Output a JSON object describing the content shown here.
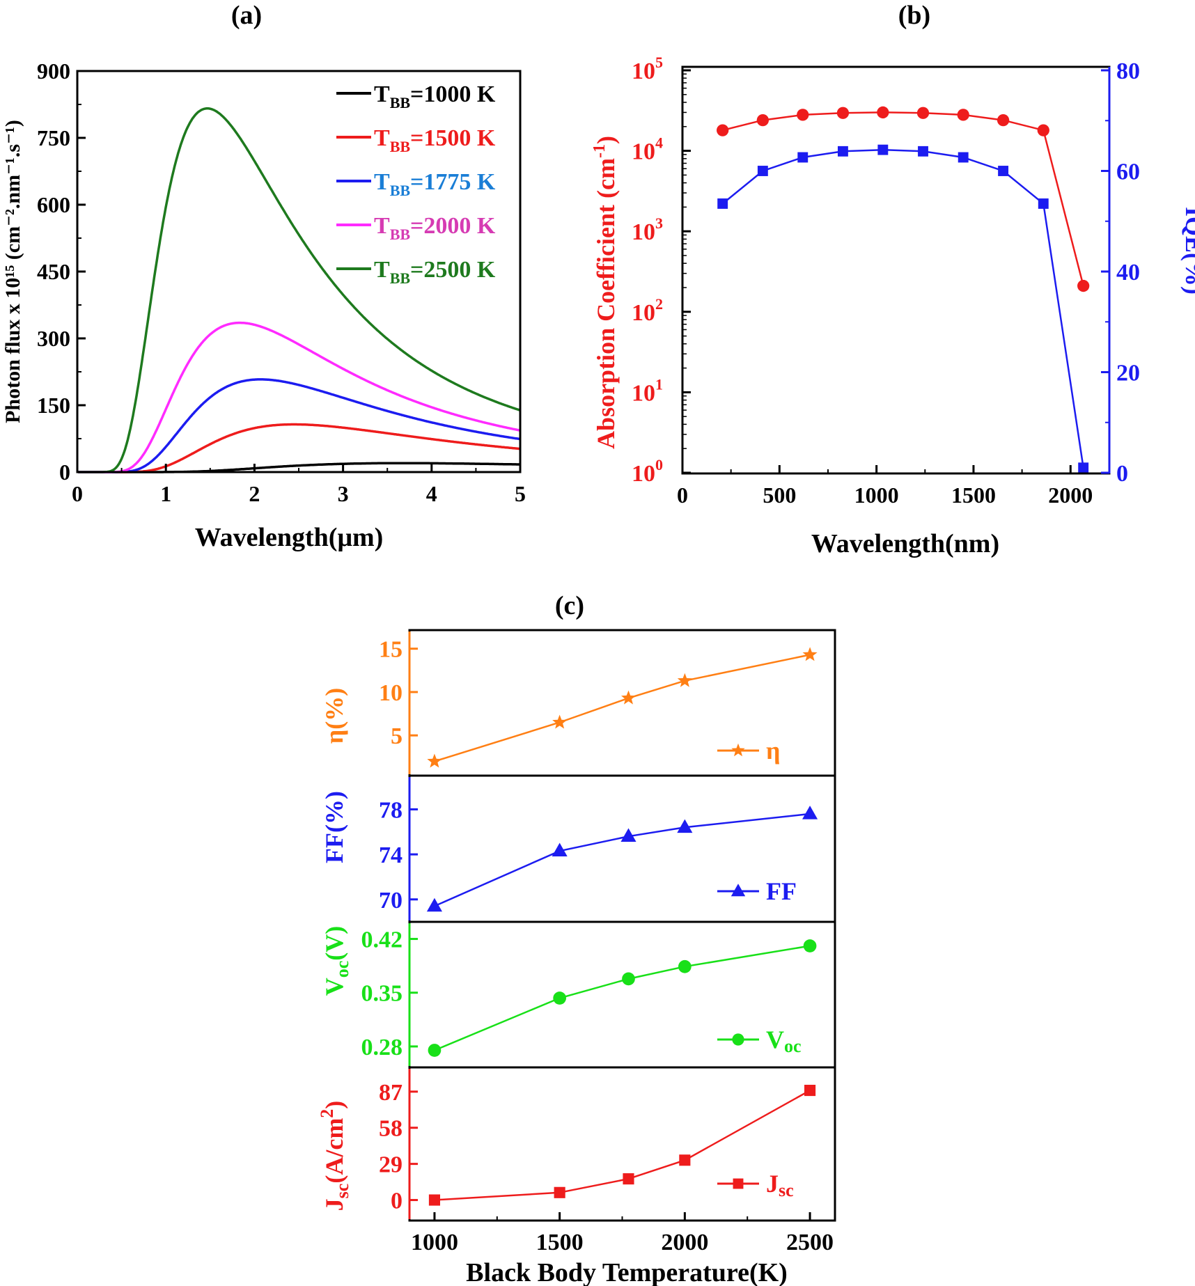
{
  "colors": {
    "black": "#000000",
    "red": "#ee1c1c",
    "blue": "#1c1cf0",
    "magenta": "#ff2bff",
    "green": "#1e7a1e",
    "orange": "#ff7f14",
    "lime": "#18e018",
    "legend_blue": "#1a7ed6",
    "legend_magenta": "#d63bb3"
  },
  "chart_data": [
    {
      "id": "a",
      "panel_label": "(a)",
      "type": "line",
      "xlabel": "Wavelength(μm)",
      "ylabel": "Photon flux x 10¹⁵ (cm⁻².nm⁻¹.s⁻¹)",
      "xlim": [
        0,
        5
      ],
      "ylim": [
        0,
        900
      ],
      "xticks": [
        "0",
        "1",
        "2",
        "3",
        "4",
        "5"
      ],
      "yticks": [
        "0",
        "150",
        "300",
        "450",
        "600",
        "750",
        "900"
      ],
      "legend_placement": "top-right",
      "series": [
        {
          "name": "T_BB=1000 K",
          "legend_text": "1000 K",
          "temp": 1000,
          "peak": 20,
          "color": "black"
        },
        {
          "name": "T_BB=1500 K",
          "legend_text": "1500 K",
          "temp": 1500,
          "peak": 107,
          "color": "red"
        },
        {
          "name": "T_BB=1775 K",
          "legend_text": "1775 K",
          "temp": 1775,
          "peak": 208,
          "color": "blue"
        },
        {
          "name": "T_BB=2000 K",
          "legend_text": "2000 K",
          "temp": 2000,
          "peak": 335,
          "color": "magenta"
        },
        {
          "name": "T_BB=2500 K",
          "legend_text": "2500 K",
          "temp": 2500,
          "peak": 816,
          "color": "green"
        }
      ],
      "legend_prefix": "T",
      "legend_sub": "BB",
      "legend_eq": "="
    },
    {
      "id": "b",
      "panel_label": "(b)",
      "type": "line",
      "xlabel": "Wavelength(nm)",
      "ylabel_left": "Absorption Coefficient (cm",
      "ylabel_left_sup": "-1",
      "ylabel_left_end": ")",
      "ylabel_right": "IQE(%)",
      "xlim": [
        0,
        2200
      ],
      "xticks": [
        "0",
        "500",
        "1000",
        "1500",
        "2000"
      ],
      "ylim_left_log10": [
        0,
        5
      ],
      "yticks_left_base": "10",
      "yticks_left_exp": [
        "0",
        "1",
        "2",
        "3",
        "4",
        "5"
      ],
      "ylim_right": [
        0,
        80
      ],
      "yticks_right": [
        "0",
        "20",
        "40",
        "60",
        "80"
      ],
      "series": [
        {
          "name": "Absorption Coefficient",
          "axis": "left",
          "color": "red",
          "marker": "circle",
          "x": [
            207,
            414,
            620,
            827,
            1033,
            1240,
            1447,
            1653,
            1860,
            2066
          ],
          "y": [
            18000,
            24000,
            28000,
            29500,
            30000,
            29500,
            28000,
            24000,
            18000,
            210
          ]
        },
        {
          "name": "IQE",
          "axis": "right",
          "color": "blue",
          "marker": "square",
          "x": [
            207,
            414,
            620,
            827,
            1033,
            1240,
            1447,
            1653,
            1860,
            2066
          ],
          "y": [
            53.5,
            60,
            62.7,
            63.9,
            64.2,
            63.9,
            62.7,
            60,
            53.5,
            1
          ]
        }
      ]
    },
    {
      "id": "c",
      "panel_label": "(c)",
      "type": "line",
      "xlabel": "Black Body Temperature(K)",
      "xlim": [
        900,
        2600
      ],
      "xticks": [
        "1000",
        "1500",
        "2000",
        "2500"
      ],
      "x": [
        1000,
        1500,
        1775,
        2000,
        2500
      ],
      "subplots": [
        {
          "name": "η",
          "ylabel": "η(%)",
          "color": "orange",
          "marker": "star",
          "ylim": [
            1,
            16.5
          ],
          "yticks": [
            "5",
            "10",
            "15"
          ],
          "ytick_values": [
            5,
            10,
            15
          ],
          "values": [
            2,
            6.5,
            9.3,
            11.3,
            14.3
          ],
          "legend": "η",
          "legend_sub": ""
        },
        {
          "name": "FF",
          "ylabel": "FF(%)",
          "color": "blue",
          "marker": "triangle",
          "ylim": [
            68.5,
            80.5
          ],
          "yticks": [
            "70",
            "74",
            "78"
          ],
          "ytick_values": [
            70,
            74,
            78
          ],
          "values": [
            69.4,
            74.3,
            75.6,
            76.4,
            77.6
          ],
          "legend": "FF",
          "legend_sub": ""
        },
        {
          "name": "Voc",
          "ylabel": "V",
          "ylabel_sub": "oc",
          "ylabel_end": "(V)",
          "color": "lime",
          "marker": "circle",
          "ylim": [
            0.26,
            0.435
          ],
          "yticks": [
            "0.28",
            "0.35",
            "0.42"
          ],
          "ytick_values": [
            0.28,
            0.35,
            0.42
          ],
          "values": [
            0.275,
            0.343,
            0.368,
            0.384,
            0.411
          ],
          "legend": "V",
          "legend_sub": "oc"
        },
        {
          "name": "Jsc",
          "ylabel": "J",
          "ylabel_sub": "sc",
          "ylabel_end": "(A/cm",
          "ylabel_sup": "2",
          "ylabel_close": ")",
          "color": "red",
          "marker": "square",
          "ylim": [
            -12,
            102
          ],
          "yticks": [
            "0",
            "29",
            "58",
            "87"
          ],
          "ytick_values": [
            0,
            29,
            58,
            87
          ],
          "values": [
            0,
            6,
            17,
            32,
            88
          ],
          "legend": "J",
          "legend_sub": "sc"
        }
      ]
    }
  ]
}
